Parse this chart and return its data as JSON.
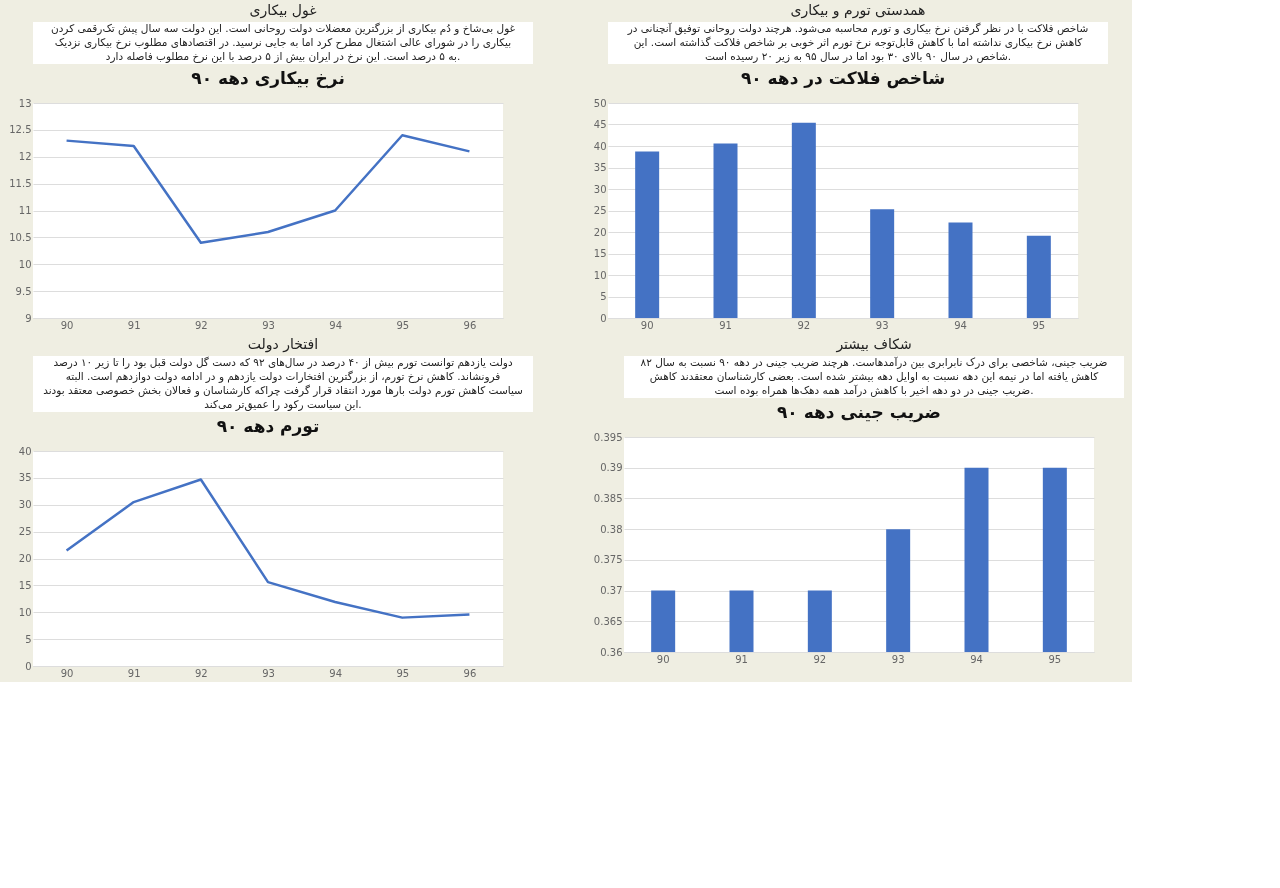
{
  "chart_data": [
    {
      "type": "line",
      "title": "غول بیکاری",
      "annotations": [
        "غول بی‌شاخ و دُم بیکاری از بزرگترین معضلات دولت روحانی است.  این دولت سه سال پیش تک‌رقمی کردن بیکاری را در شورای عالی اشتغال مطرح کرد اما به جایی نرسید.  در اقتصادهای مطلوب نرخ بیکاری نزدیک به ۵ درصد است.  این نرخ در ایران بیش از ۵ درصد با این نرخ مطلوب فاصله دارد."
      ],
      "subtitle": "نرخ بیکاری دهه ۹۰",
      "categories": [
        "90",
        "91",
        "92",
        "93",
        "94",
        "95",
        "96"
      ],
      "values": [
        12.3,
        12.2,
        10.4,
        10.6,
        11.0,
        12.4,
        12.1
      ],
      "color": "#4472c4",
      "ylim": [
        9,
        13
      ],
      "yticks": [
        9,
        9.5,
        10,
        10.5,
        11,
        11.5,
        12,
        12.5,
        13
      ],
      "grid": "y"
    },
    {
      "type": "bar",
      "title": "همدستی تورم و بیکاری",
      "annotations": [
        "شاخص فلاکت با در نظر گرفتن نرخ بیکاری و تورم محاسبه می‌شود.  هرچند دولت روحانی توفیق آنچنانی در کاهش نرخ بیکاری نداشته اما با کاهش قابل‌توجه نرخ تورم اثر خوبی بر شاخص فلاکت گذاشته است.  این شاخص در سال ۹۰ بالای ۳۰ بود اما در سال ۹۵ به زیر ۲۰ رسیده است."
      ],
      "subtitle": "شاخص فلاکت در دهه ۹۰",
      "categories": [
        "90",
        "91",
        "92",
        "93",
        "94",
        "95"
      ],
      "values": [
        38.7,
        40.6,
        45.4,
        25.3,
        22.2,
        19.1
      ],
      "color": "#4472c4",
      "ylim": [
        0,
        50
      ],
      "yticks": [
        0,
        5,
        10,
        15,
        20,
        25,
        30,
        35,
        40,
        45,
        50
      ],
      "grid": "y"
    },
    {
      "type": "line",
      "title": "افتخار دولت",
      "annotations": [
        "دولت یازدهم توانست تورم بیش از ۴۰ درصد در سال‌های ۹۲ که دست گل دولت قبل بود را تا زیر ۱۰ درصد فرونشاند. کاهش نرخ تورم، از بزرگترین افتخارات دولت یازدهم و در ادامه دولت دوازدهم است. البته سیاست کاهش تورم دولت بارها مورد انتقاد قرار گرفت چراکه کارشناسان و فعالان بخش خصوصی معتقد بودند این سیاست رکود را عمیق‌تر می‌کند."
      ],
      "subtitle": "تورم دهه ۹۰",
      "categories": [
        "90",
        "91",
        "92",
        "93",
        "94",
        "95",
        "96"
      ],
      "values": [
        21.5,
        30.5,
        34.7,
        15.6,
        11.9,
        9.0,
        9.6
      ],
      "color": "#4472c4",
      "ylim": [
        0,
        40
      ],
      "yticks": [
        0,
        5,
        10,
        15,
        20,
        25,
        30,
        35,
        40
      ],
      "grid": "y"
    },
    {
      "type": "bar",
      "title": "شکاف بیشتر",
      "annotations": [
        "ضریب جینی، شاخصی برای درک نابرابری بین درآمدهاست.  هرچند ضریب جینی در دهه ۹۰ نسبت به سال ۸۲ کاهش یافته اما در نیمه این دهه نسبت به اوایل دهه بیشتر شده است.  بعضی کارشناسان معتقدند کاهش ضریب جینی در دو دهه اخیر با کاهش درآمد همه دهک‌ها همراه بوده است."
      ],
      "subtitle": "ضریب جینی دهه ۹۰",
      "categories": [
        "90",
        "91",
        "92",
        "93",
        "94",
        "95"
      ],
      "values": [
        0.37,
        0.37,
        0.37,
        0.38,
        0.39,
        0.39
      ],
      "color": "#4472c4",
      "ylim": [
        0.36,
        0.395
      ],
      "yticks": [
        0.36,
        0.365,
        0.37,
        0.375,
        0.38,
        0.385,
        0.39,
        0.395
      ],
      "grid": "y"
    }
  ]
}
